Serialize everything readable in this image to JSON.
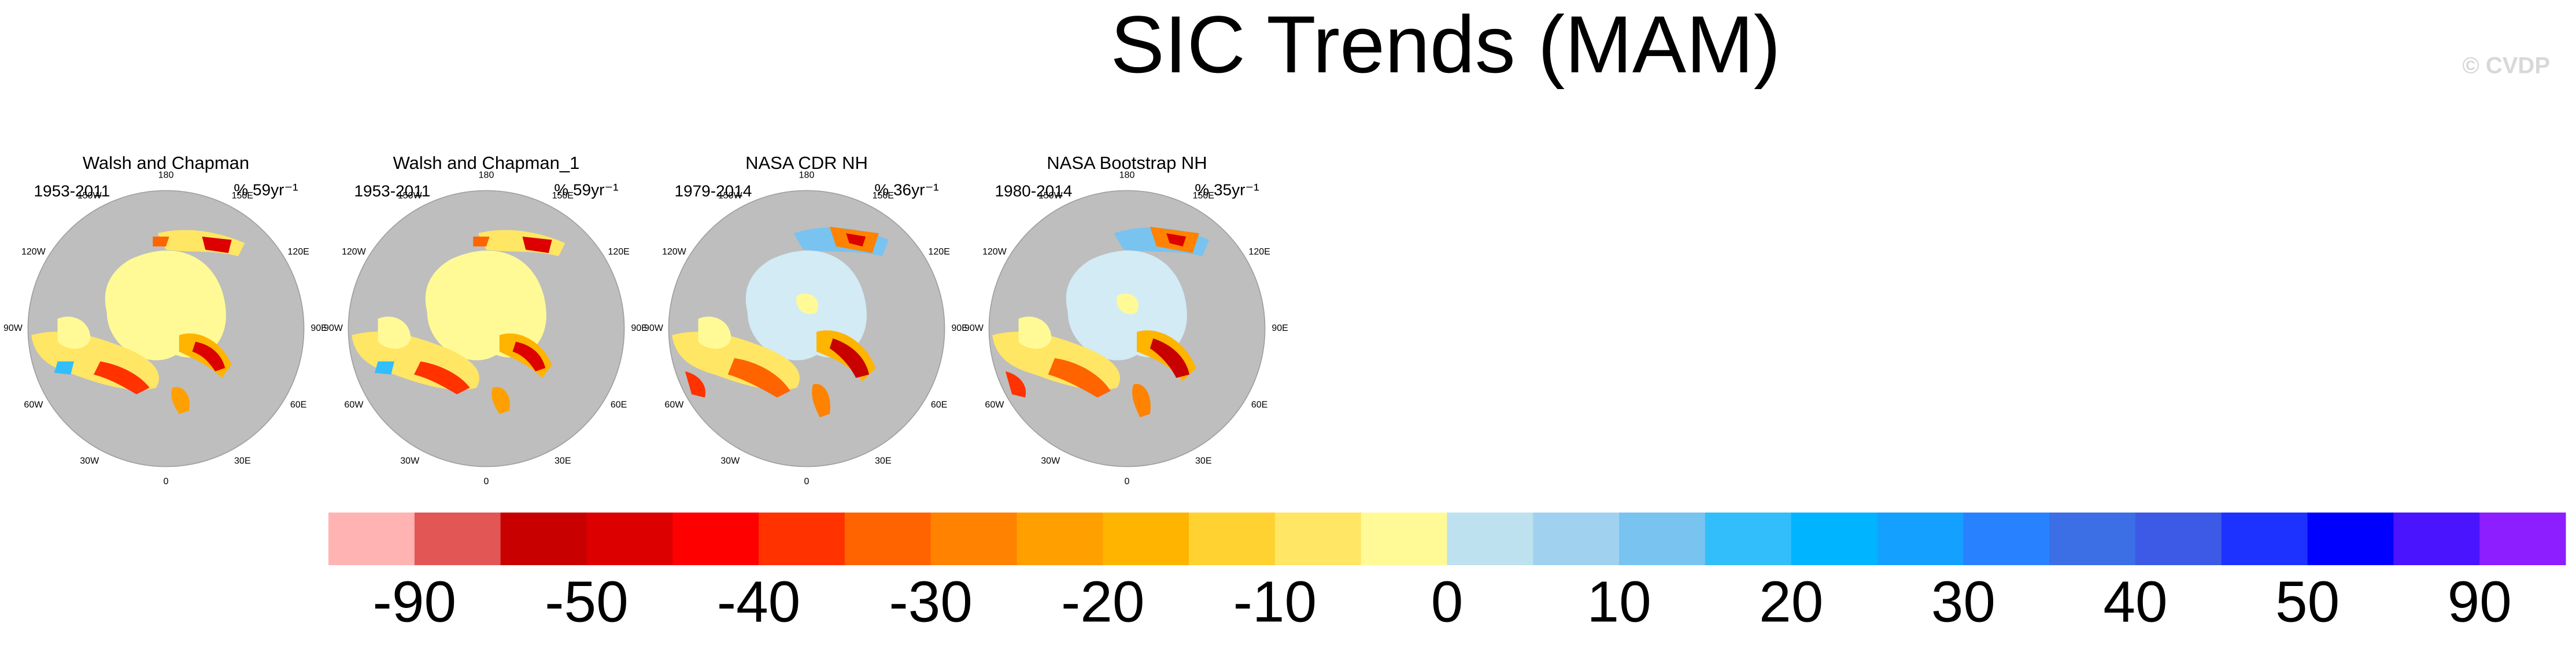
{
  "title": "SIC Trends (MAM)",
  "watermark": "© CVDP",
  "longitude_labels": [
    "0",
    "30E",
    "60E",
    "90E",
    "120E",
    "150E",
    "180",
    "150W",
    "120W",
    "90W",
    "60W",
    "30W"
  ],
  "panels": [
    {
      "title": "Walsh and Chapman",
      "period": "1953-2011",
      "trend": "% 59yr⁻¹"
    },
    {
      "title": "Walsh and Chapman_1",
      "period": "1953-2011",
      "trend": "% 59yr⁻¹"
    },
    {
      "title": "NASA CDR NH",
      "period": "1979-2014",
      "trend": "% 36yr⁻¹"
    },
    {
      "title": "NASA Bootstrap NH",
      "period": "1980-2014",
      "trend": "% 35yr⁻¹"
    }
  ],
  "colorbar": {
    "colors": [
      "#FFB3B3",
      "#E35656",
      "#C80000",
      "#DC0000",
      "#FF0000",
      "#FF3200",
      "#FF6400",
      "#FF8200",
      "#FFA000",
      "#FFB400",
      "#FFD232",
      "#FFE664",
      "#FFFA96",
      "#BEE1F0",
      "#A0D2F0",
      "#78C3F0",
      "#32BEFA",
      "#00B4FF",
      "#14A0FF",
      "#2882FF",
      "#3C6EE6",
      "#3C5AE6",
      "#1E32FF",
      "#0000FF",
      "#4B14FF",
      "#8C1EFF"
    ],
    "labels": [
      -90,
      -50,
      -40,
      -30,
      -20,
      -10,
      0,
      10,
      20,
      30,
      40,
      50,
      90
    ]
  }
}
